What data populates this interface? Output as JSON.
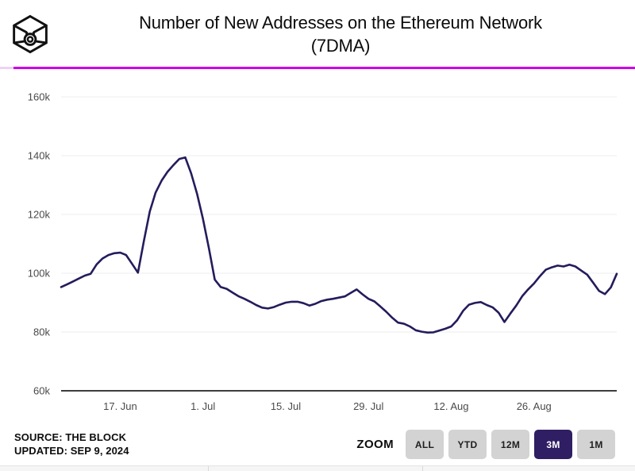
{
  "header": {
    "title_line1": "Number of New Addresses on the Ethereum Network",
    "title_line2": "(7DMA)"
  },
  "footer": {
    "source_line1": "SOURCE: THE BLOCK",
    "updated_line2": "UPDATED: SEP 9, 2024",
    "zoom_label": "ZOOM",
    "zoom_buttons": [
      {
        "label": "ALL",
        "active": false
      },
      {
        "label": "YTD",
        "active": false
      },
      {
        "label": "12M",
        "active": false
      },
      {
        "label": "3M",
        "active": true
      },
      {
        "label": "1M",
        "active": false
      }
    ]
  },
  "colors": {
    "accent_rule": "#cb00e8",
    "series_line": "#241c5c",
    "grid_line": "#ececec",
    "axis_line": "#3d3d3d",
    "tick_text": "#4a4a4a",
    "active_button_bg": "#2f1e63",
    "button_bg": "#d3d3d3"
  },
  "chart_data": {
    "type": "line",
    "title": "Number of New Addresses on the Ethereum Network (7DMA)",
    "series_name": "New addresses on Ethereum (7-day moving average)",
    "unit": "thousands of addresses",
    "grid": "horizontal",
    "legend_position": "none",
    "x_domain": [
      "2024-06-07",
      "2024-09-09"
    ],
    "ylim": [
      60,
      160
    ],
    "yticks": [
      {
        "label": "60k",
        "value": 60
      },
      {
        "label": "80k",
        "value": 80
      },
      {
        "label": "100k",
        "value": 100
      },
      {
        "label": "120k",
        "value": 120
      },
      {
        "label": "140k",
        "value": 140
      },
      {
        "label": "160k",
        "value": 160
      }
    ],
    "xticks": [
      {
        "label": "17. Jun",
        "date": "2024-06-17"
      },
      {
        "label": "1. Jul",
        "date": "2024-07-01"
      },
      {
        "label": "15. Jul",
        "date": "2024-07-15"
      },
      {
        "label": "29. Jul",
        "date": "2024-07-29"
      },
      {
        "label": "12. Aug",
        "date": "2024-08-12"
      },
      {
        "label": "26. Aug",
        "date": "2024-08-26"
      }
    ],
    "points": [
      [
        "2024-06-07",
        95.3
      ],
      [
        "2024-06-08",
        96.2
      ],
      [
        "2024-06-09",
        97.2
      ],
      [
        "2024-06-10",
        98.2
      ],
      [
        "2024-06-11",
        99.2
      ],
      [
        "2024-06-12",
        99.8
      ],
      [
        "2024-06-13",
        103.0
      ],
      [
        "2024-06-14",
        105.0
      ],
      [
        "2024-06-15",
        106.2
      ],
      [
        "2024-06-16",
        106.8
      ],
      [
        "2024-06-17",
        107.0
      ],
      [
        "2024-06-18",
        106.2
      ],
      [
        "2024-06-19",
        103.2
      ],
      [
        "2024-06-20",
        100.2
      ],
      [
        "2024-06-21",
        111.0
      ],
      [
        "2024-06-22",
        121.0
      ],
      [
        "2024-06-23",
        127.5
      ],
      [
        "2024-06-24",
        131.5
      ],
      [
        "2024-06-25",
        134.5
      ],
      [
        "2024-06-26",
        136.8
      ],
      [
        "2024-06-27",
        138.9
      ],
      [
        "2024-06-28",
        139.4
      ],
      [
        "2024-06-29",
        134.0
      ],
      [
        "2024-06-30",
        127.0
      ],
      [
        "2024-07-01",
        118.5
      ],
      [
        "2024-07-02",
        108.5
      ],
      [
        "2024-07-03",
        97.8
      ],
      [
        "2024-07-04",
        95.3
      ],
      [
        "2024-07-05",
        94.7
      ],
      [
        "2024-07-06",
        93.4
      ],
      [
        "2024-07-07",
        92.2
      ],
      [
        "2024-07-08",
        91.3
      ],
      [
        "2024-07-09",
        90.3
      ],
      [
        "2024-07-10",
        89.2
      ],
      [
        "2024-07-11",
        88.3
      ],
      [
        "2024-07-12",
        88.0
      ],
      [
        "2024-07-13",
        88.5
      ],
      [
        "2024-07-14",
        89.3
      ],
      [
        "2024-07-15",
        90.0
      ],
      [
        "2024-07-16",
        90.3
      ],
      [
        "2024-07-17",
        90.3
      ],
      [
        "2024-07-18",
        89.8
      ],
      [
        "2024-07-19",
        89.0
      ],
      [
        "2024-07-20",
        89.6
      ],
      [
        "2024-07-21",
        90.5
      ],
      [
        "2024-07-22",
        91.0
      ],
      [
        "2024-07-23",
        91.3
      ],
      [
        "2024-07-24",
        91.7
      ],
      [
        "2024-07-25",
        92.1
      ],
      [
        "2024-07-26",
        93.3
      ],
      [
        "2024-07-27",
        94.5
      ],
      [
        "2024-07-28",
        92.8
      ],
      [
        "2024-07-29",
        91.3
      ],
      [
        "2024-07-30",
        90.4
      ],
      [
        "2024-07-31",
        88.7
      ],
      [
        "2024-08-01",
        86.9
      ],
      [
        "2024-08-02",
        84.9
      ],
      [
        "2024-08-03",
        83.2
      ],
      [
        "2024-08-04",
        82.8
      ],
      [
        "2024-08-05",
        81.9
      ],
      [
        "2024-08-06",
        80.6
      ],
      [
        "2024-08-07",
        80.1
      ],
      [
        "2024-08-08",
        79.8
      ],
      [
        "2024-08-09",
        79.9
      ],
      [
        "2024-08-10",
        80.5
      ],
      [
        "2024-08-11",
        81.1
      ],
      [
        "2024-08-12",
        81.9
      ],
      [
        "2024-08-13",
        84.0
      ],
      [
        "2024-08-14",
        87.2
      ],
      [
        "2024-08-15",
        89.3
      ],
      [
        "2024-08-16",
        89.9
      ],
      [
        "2024-08-17",
        90.2
      ],
      [
        "2024-08-18",
        89.2
      ],
      [
        "2024-08-19",
        88.4
      ],
      [
        "2024-08-20",
        86.6
      ],
      [
        "2024-08-21",
        83.4
      ],
      [
        "2024-08-22",
        86.3
      ],
      [
        "2024-08-23",
        89.0
      ],
      [
        "2024-08-24",
        92.2
      ],
      [
        "2024-08-25",
        94.5
      ],
      [
        "2024-08-26",
        96.5
      ],
      [
        "2024-08-27",
        99.0
      ],
      [
        "2024-08-28",
        101.2
      ],
      [
        "2024-08-29",
        102.0
      ],
      [
        "2024-08-30",
        102.6
      ],
      [
        "2024-08-31",
        102.3
      ],
      [
        "2024-09-01",
        102.9
      ],
      [
        "2024-09-02",
        102.3
      ],
      [
        "2024-09-03",
        100.9
      ],
      [
        "2024-09-04",
        99.5
      ],
      [
        "2024-09-05",
        96.8
      ],
      [
        "2024-09-06",
        94.0
      ],
      [
        "2024-09-07",
        92.9
      ],
      [
        "2024-09-08",
        95.2
      ],
      [
        "2024-09-09",
        99.8
      ]
    ]
  }
}
